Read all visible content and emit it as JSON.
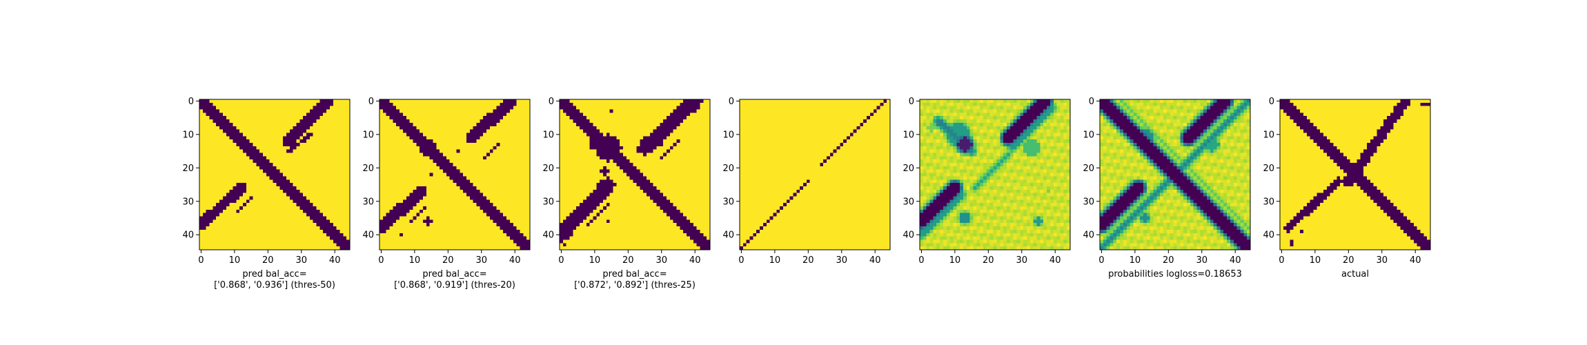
{
  "figure": {
    "grid_size": 45,
    "colormap": "viridis",
    "colors": {
      "low": "#440154",
      "mid_low": "#3b528b",
      "mid": "#21918c",
      "mid_high": "#5ec962",
      "high": "#fde725"
    }
  },
  "chart_data": [
    {
      "type": "heatmap",
      "title": "",
      "xlabel": "pred bal_acc=\n['0.868', '0.936'] (thres-50)",
      "ylabel": "",
      "value_kind": "binary",
      "grid": false,
      "xticks": [
        0,
        10,
        20,
        30,
        40
      ],
      "yticks": [
        0,
        10,
        20,
        30,
        40
      ],
      "xlim": [
        0,
        44
      ],
      "ylim": [
        44,
        0
      ],
      "bands": [
        {
          "x0": 0,
          "y0": 0,
          "x1": 44,
          "y1": 44,
          "width": 1.6
        },
        {
          "x0": 26,
          "y0": 12,
          "x1": 38,
          "y1": 0,
          "width": 1.6
        },
        {
          "x0": 0,
          "y0": 37,
          "x1": 12,
          "y1": 26,
          "width": 1.6
        },
        {
          "x0": 26,
          "y0": 15,
          "x1": 33,
          "y1": 10,
          "width": 0.6
        },
        {
          "x0": 11,
          "y0": 33,
          "x1": 15,
          "y1": 29,
          "width": 0.6
        }
      ],
      "blobs": []
    },
    {
      "type": "heatmap",
      "title": "",
      "xlabel": "pred bal_acc=\n['0.868', '0.919'] (thres-20)",
      "ylabel": "",
      "value_kind": "binary",
      "grid": false,
      "xticks": [
        0,
        10,
        20,
        30,
        40
      ],
      "yticks": [
        0,
        10,
        20,
        30,
        40
      ],
      "xlim": [
        0,
        44
      ],
      "ylim": [
        44,
        0
      ],
      "bands": [
        {
          "x0": 0,
          "y0": 0,
          "x1": 44,
          "y1": 44,
          "width": 1.8
        },
        {
          "x0": 27,
          "y0": 11,
          "x1": 39,
          "y1": 0,
          "width": 1.8
        },
        {
          "x0": 0,
          "y0": 38,
          "x1": 12,
          "y1": 27,
          "width": 1.8
        },
        {
          "x0": 31,
          "y0": 17,
          "x1": 35,
          "y1": 13,
          "width": 0.6
        },
        {
          "x0": 9,
          "y0": 36,
          "x1": 13,
          "y1": 32,
          "width": 0.6
        }
      ],
      "blobs": [
        {
          "cx": 14,
          "cy": 14,
          "r": 2.5,
          "value": 0
        },
        {
          "cx": 15,
          "cy": 22,
          "r": 0.6,
          "value": 0
        },
        {
          "cx": 23,
          "cy": 15,
          "r": 0.6,
          "value": 0
        },
        {
          "cx": 14,
          "cy": 36,
          "r": 1.0,
          "value": 0
        },
        {
          "cx": 6,
          "cy": 40,
          "r": 0.6,
          "value": 0
        }
      ]
    },
    {
      "type": "heatmap",
      "title": "",
      "xlabel": "pred bal_acc=\n['0.872', '0.892'] (thres-25)",
      "ylabel": "",
      "value_kind": "binary",
      "grid": false,
      "xticks": [
        0,
        10,
        20,
        30,
        40
      ],
      "yticks": [
        0,
        10,
        20,
        30,
        40
      ],
      "xlim": [
        0,
        44
      ],
      "ylim": [
        44,
        0
      ],
      "bands": [
        {
          "x0": 0,
          "y0": 0,
          "x1": 44,
          "y1": 44,
          "width": 2.0
        },
        {
          "x0": 25,
          "y0": 14,
          "x1": 40,
          "y1": 0,
          "width": 2.2
        },
        {
          "x0": 0,
          "y0": 40,
          "x1": 14,
          "y1": 25,
          "width": 2.2
        },
        {
          "x0": 30,
          "y0": 17,
          "x1": 35,
          "y1": 12,
          "width": 0.7
        },
        {
          "x0": 8,
          "y0": 37,
          "x1": 14,
          "y1": 31,
          "width": 0.7
        }
      ],
      "blobs": [
        {
          "cx": 14,
          "cy": 14,
          "r": 4.0,
          "value": 0
        },
        {
          "cx": 10,
          "cy": 13,
          "r": 1.5,
          "value": 0
        },
        {
          "cx": 18,
          "cy": 17,
          "r": 1.2,
          "value": 0
        },
        {
          "cx": 13,
          "cy": 21,
          "r": 1.0,
          "value": 0
        },
        {
          "cx": 23,
          "cy": 15,
          "r": 0.8,
          "value": 0
        },
        {
          "cx": 14,
          "cy": 36,
          "r": 0.8,
          "value": 0
        },
        {
          "cx": 1,
          "cy": 43,
          "r": 0.7,
          "value": 0
        },
        {
          "cx": 15,
          "cy": 3,
          "r": 0.6,
          "value": 0
        },
        {
          "cx": 30,
          "cy": 13,
          "r": 0.6,
          "value": 0
        }
      ]
    },
    {
      "type": "heatmap",
      "title": "",
      "xlabel": "",
      "ylabel": "",
      "value_kind": "binary",
      "grid": false,
      "xticks": [
        0,
        10,
        20,
        30,
        40
      ],
      "yticks": [
        0,
        10,
        20,
        30,
        40
      ],
      "xlim": [
        0,
        44
      ],
      "ylim": [
        44,
        0
      ],
      "bands": [
        {
          "x0": 0,
          "y0": 44,
          "x1": 20,
          "y1": 24,
          "width": 0.5
        },
        {
          "x0": 24,
          "y0": 19,
          "x1": 43,
          "y1": 0,
          "width": 0.5
        }
      ],
      "blobs": []
    },
    {
      "type": "heatmap",
      "title": "",
      "xlabel": "",
      "ylabel": "",
      "value_kind": "continuous",
      "grid": false,
      "xticks": [
        0,
        10,
        20,
        30,
        40
      ],
      "yticks": [
        0,
        10,
        20,
        30,
        40
      ],
      "xlim": [
        0,
        44
      ],
      "ylim": [
        44,
        0
      ],
      "bands": [
        {
          "x0": 0,
          "y0": 36,
          "x1": 10,
          "y1": 26,
          "width": 1.5
        },
        {
          "x0": 26,
          "y0": 11,
          "x1": 37,
          "y1": 0,
          "width": 1.5
        },
        {
          "x0": 5,
          "y0": 6,
          "x1": 15,
          "y1": 15,
          "width": 0.8,
          "value": 0.45
        },
        {
          "x0": 0,
          "y0": 40,
          "x1": 12,
          "y1": 28,
          "width": 0.8,
          "value": 0.55
        },
        {
          "x0": 27,
          "y0": 14,
          "x1": 39,
          "y1": 2,
          "width": 0.8,
          "value": 0.55
        },
        {
          "x0": 16,
          "y0": 26,
          "x1": 26,
          "y1": 16,
          "width": 0.5,
          "value": 0.6
        }
      ],
      "blobs": [
        {
          "cx": 13,
          "cy": 13,
          "r": 2.0,
          "value": 0.1
        },
        {
          "cx": 11,
          "cy": 10,
          "r": 3.5,
          "value": 0.55
        },
        {
          "cx": 13,
          "cy": 35,
          "r": 1.5,
          "value": 0.5
        },
        {
          "cx": 35,
          "cy": 36,
          "r": 1.0,
          "value": 0.55
        },
        {
          "cx": 33,
          "cy": 14,
          "r": 2.5,
          "value": 0.7
        },
        {
          "cx": 3,
          "cy": 8,
          "r": 1.0,
          "value": 0.8
        },
        {
          "cx": 38,
          "cy": 27,
          "r": 0.7,
          "value": 0.8
        }
      ]
    },
    {
      "type": "heatmap",
      "title": "",
      "xlabel": "probabilities logloss=0.18653",
      "ylabel": "",
      "value_kind": "continuous",
      "grid": false,
      "xticks": [
        0,
        10,
        20,
        30,
        40
      ],
      "yticks": [
        0,
        10,
        20,
        30,
        40
      ],
      "xlim": [
        0,
        44
      ],
      "ylim": [
        44,
        0
      ],
      "bands": [
        {
          "x0": 0,
          "y0": 0,
          "x1": 44,
          "y1": 44,
          "width": 1.6
        },
        {
          "x0": 26,
          "y0": 11,
          "x1": 37,
          "y1": 0,
          "width": 1.6
        },
        {
          "x0": 0,
          "y0": 37,
          "x1": 11,
          "y1": 26,
          "width": 1.6
        },
        {
          "x0": 23,
          "y0": 21,
          "x1": 44,
          "y1": 0,
          "width": 0.5,
          "value": 0.45
        },
        {
          "x0": 0,
          "y0": 44,
          "x1": 21,
          "y1": 23,
          "width": 0.5,
          "value": 0.45
        },
        {
          "x0": 6,
          "y0": 0,
          "x1": 44,
          "y1": 38,
          "width": 0.5,
          "value": 0.75
        }
      ],
      "blobs": [
        {
          "cx": 13,
          "cy": 11,
          "r": 2.5,
          "value": 0.5
        },
        {
          "cx": 13,
          "cy": 35,
          "r": 1.2,
          "value": 0.5
        },
        {
          "cx": 33,
          "cy": 13,
          "r": 2.0,
          "value": 0.6
        }
      ]
    },
    {
      "type": "heatmap",
      "title": "",
      "xlabel": "actual",
      "ylabel": "",
      "value_kind": "binary",
      "grid": false,
      "xticks": [
        0,
        10,
        20,
        30,
        40
      ],
      "yticks": [
        0,
        10,
        20,
        30,
        40
      ],
      "xlim": [
        0,
        44
      ],
      "ylim": [
        44,
        0
      ],
      "bands": [
        {
          "x0": 0,
          "y0": 0,
          "x1": 44,
          "y1": 44,
          "width": 1.5
        },
        {
          "x0": 20,
          "y0": 24,
          "x1": 37,
          "y1": 0,
          "width": 1.5
        },
        {
          "x0": 2,
          "y0": 38,
          "x1": 17,
          "y1": 24,
          "width": 1.2
        },
        {
          "x0": 42,
          "y0": 1,
          "x1": 44,
          "y1": 1,
          "width": 0.6
        },
        {
          "x0": 3,
          "y0": 43,
          "x1": 3,
          "y1": 42,
          "width": 0.6
        }
      ],
      "blobs": [
        {
          "cx": 22,
          "cy": 22,
          "r": 2.3,
          "value": 0
        },
        {
          "cx": 6,
          "cy": 39,
          "r": 0.6,
          "value": 0
        }
      ]
    }
  ]
}
